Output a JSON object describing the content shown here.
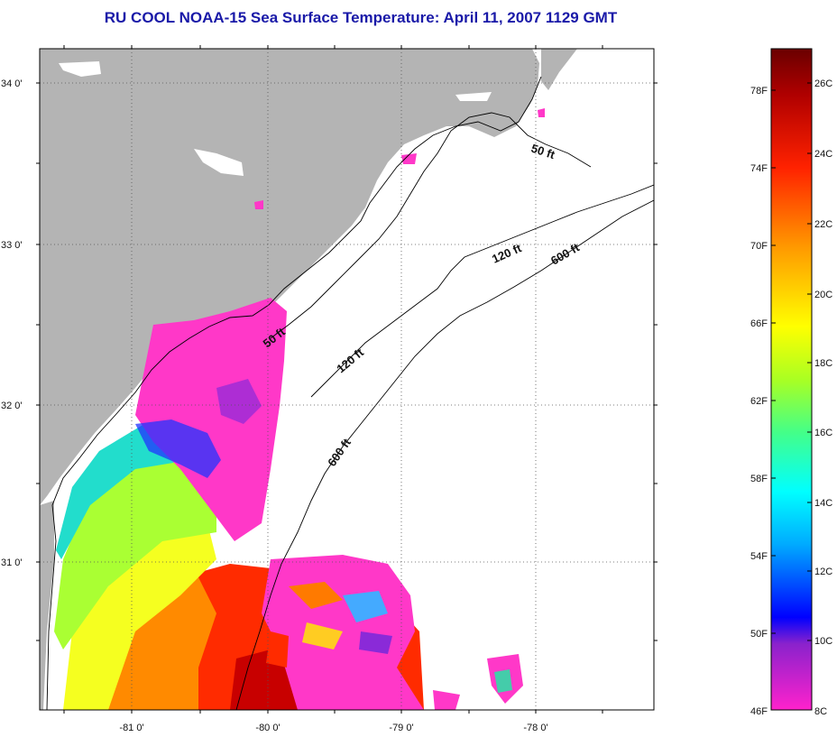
{
  "title": "RU COOL  NOAA-15  Sea Surface Temperature:  April 11, 2007 1129 GMT",
  "lat_labels": [
    "34 0'",
    "33 0'",
    "32 0'",
    "31 0'"
  ],
  "lon_labels": [
    "-81 0'",
    "-80 0'",
    "-79 0'",
    "-78 0'"
  ],
  "contours": {
    "c50a": "50 ft",
    "c50b": "50 ft",
    "c120a": "120 ft",
    "c120b": "120 ft",
    "c600a": "600 ft",
    "c600b": "600 ft"
  },
  "colorbar": {
    "fahrenheit": [
      "78F",
      "74F",
      "70F",
      "66F",
      "62F",
      "58F",
      "54F",
      "50F",
      "46F"
    ],
    "celsius": [
      "26C",
      "24C",
      "22C",
      "20C",
      "18C",
      "16C",
      "14C",
      "12C",
      "10C",
      "8C"
    ],
    "gradient": [
      "#ff22cc",
      "#8a22cc",
      "#0000ff",
      "#00aaff",
      "#00ffff",
      "#44ff88",
      "#aaff22",
      "#ffff00",
      "#ff9900",
      "#ff2200",
      "#a00000",
      "#6a0000"
    ]
  },
  "colors": {
    "land": "#b4b4b4",
    "no_data": "#ffffff",
    "title": "#1a1aa8"
  }
}
